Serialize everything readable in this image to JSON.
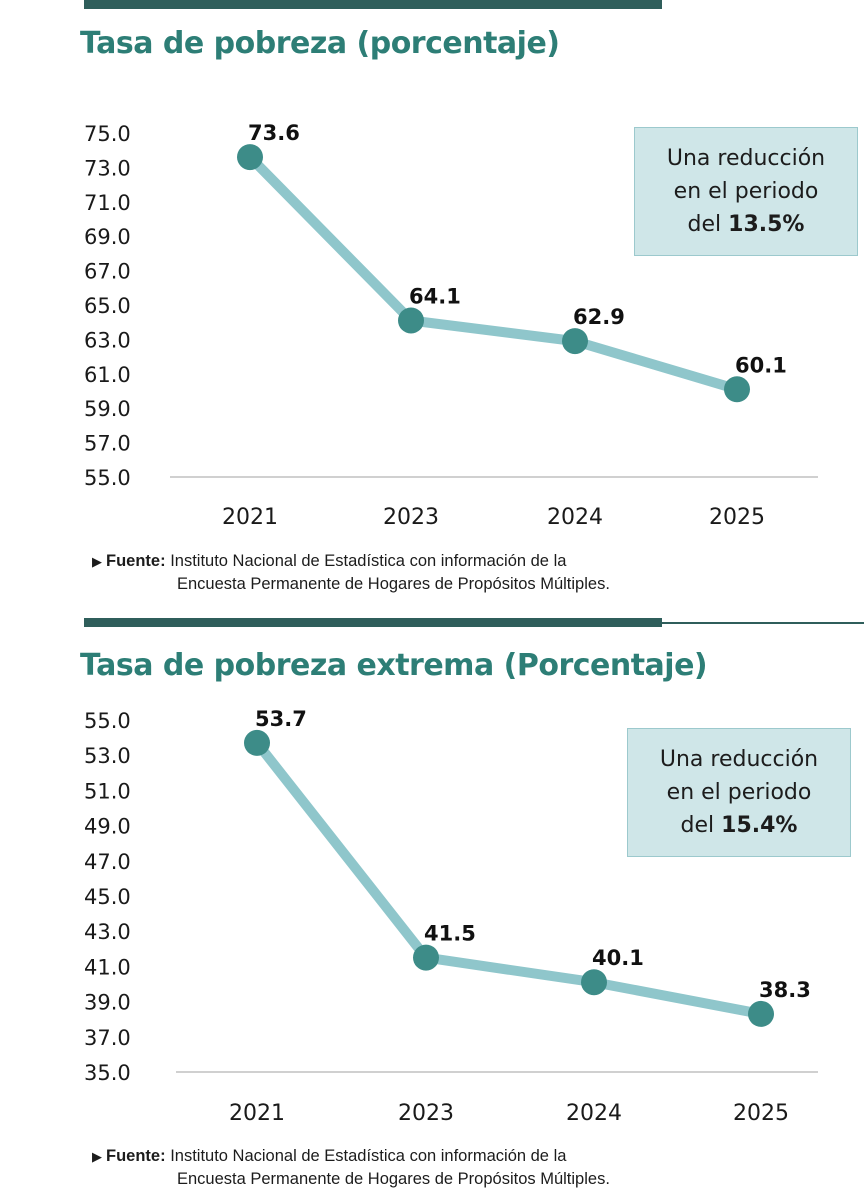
{
  "chart_data": [
    {
      "type": "line",
      "title": "Tasa de pobreza (porcentaje)",
      "categories": [
        "2021",
        "2023",
        "2024",
        "2025"
      ],
      "values": [
        73.6,
        64.1,
        62.9,
        60.1
      ],
      "value_labels": [
        "73.6",
        "64.1",
        "62.9",
        "60.1"
      ],
      "yticks": [
        "75.0",
        "73.0",
        "71.0",
        "69.0",
        "67.0",
        "65.0",
        "63.0",
        "61.0",
        "59.0",
        "57.0",
        "55.0"
      ],
      "ylim": [
        55,
        75
      ],
      "xlabel": "",
      "ylabel": "",
      "grid": false,
      "annotation": {
        "prefix_1": "Una reducción",
        "prefix_2": "en el periodo",
        "prefix_3": "del",
        "value": "13.5%"
      },
      "source": {
        "label": "Fuente:",
        "line1": "Instituto Nacional de Estadística con información de la",
        "line2": "Encuesta Permanente de Hogares de Propósitos Múltiples."
      },
      "colors": {
        "line": "#8fc6cb",
        "marker": "#3d8c88"
      }
    },
    {
      "type": "line",
      "title": "Tasa de pobreza extrema (Porcentaje)",
      "categories": [
        "2021",
        "2023",
        "2024",
        "2025"
      ],
      "values": [
        53.7,
        41.5,
        40.1,
        38.3
      ],
      "value_labels": [
        "53.7",
        "41.5",
        "40.1",
        "38.3"
      ],
      "yticks": [
        "55.0",
        "53.0",
        "51.0",
        "49.0",
        "47.0",
        "45.0",
        "43.0",
        "41.0",
        "39.0",
        "37.0",
        "35.0"
      ],
      "ylim": [
        35,
        55
      ],
      "xlabel": "",
      "ylabel": "",
      "grid": false,
      "annotation": {
        "prefix_1": "Una reducción",
        "prefix_2": "en el periodo",
        "prefix_3": "del",
        "value": "15.4%"
      },
      "source": {
        "label": "Fuente:",
        "line1": "Instituto Nacional de Estadística con información de la",
        "line2": "Encuesta Permanente de Hogares de Propósitos Múltiples."
      },
      "colors": {
        "line": "#8fc6cb",
        "marker": "#3d8c88"
      }
    }
  ]
}
